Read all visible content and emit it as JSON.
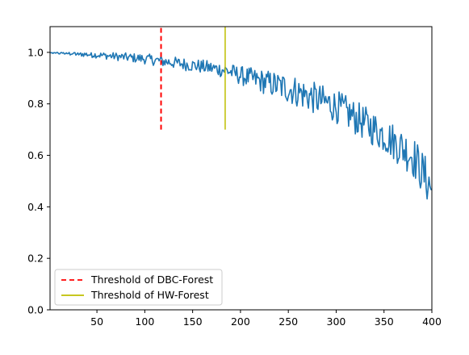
{
  "chart_data": {
    "type": "line",
    "title": "",
    "xlabel": "",
    "ylabel": "",
    "xlim": [
      1,
      400
    ],
    "ylim": [
      0.0,
      1.1
    ],
    "x_ticks": [
      50,
      100,
      150,
      200,
      250,
      300,
      350,
      400
    ],
    "y_ticks": [
      0.0,
      0.2,
      0.4,
      0.6,
      0.8,
      1.0
    ],
    "y_tick_labels": [
      "0.0",
      "0.2",
      "0.4",
      "0.6",
      "0.8",
      "1.0"
    ],
    "grid": false,
    "legend_position": "lower-left",
    "series": [
      {
        "color": "#1f77b4",
        "x_start": 1,
        "x_step": 1,
        "trend_points": [
          [
            1,
            1.0
          ],
          [
            50,
            0.99
          ],
          [
            100,
            0.975
          ],
          [
            120,
            0.965
          ],
          [
            150,
            0.95
          ],
          [
            185,
            0.93
          ],
          [
            200,
            0.91
          ],
          [
            250,
            0.86
          ],
          [
            300,
            0.79
          ],
          [
            350,
            0.68
          ],
          [
            380,
            0.6
          ],
          [
            400,
            0.47
          ]
        ],
        "noise_amplitude_points": [
          [
            1,
            0.005
          ],
          [
            100,
            0.02
          ],
          [
            185,
            0.03
          ],
          [
            250,
            0.06
          ],
          [
            350,
            0.07
          ],
          [
            400,
            0.09
          ]
        ]
      }
    ],
    "threshold_lines": [
      {
        "name": "Threshold of DBC-Forest",
        "x": 117,
        "y_range": [
          0.7,
          1.1
        ],
        "color": "#ff0000",
        "style": "dashed"
      },
      {
        "name": "Threshold of HW-Forest",
        "x": 184,
        "y_range": [
          0.7,
          1.1
        ],
        "color": "#bfbf00",
        "style": "solid"
      }
    ]
  }
}
